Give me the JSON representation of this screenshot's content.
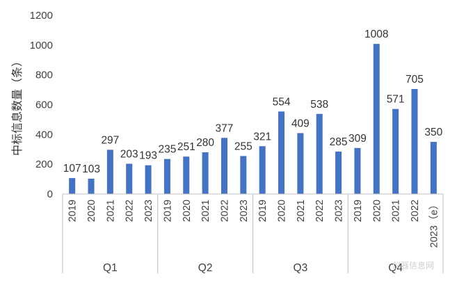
{
  "chart_data": {
    "type": "bar",
    "ylabel": "中标信息数量（条）",
    "ylim": [
      0,
      1200
    ],
    "yticks": [
      0,
      200,
      400,
      600,
      800,
      1000,
      1200
    ],
    "grid": false,
    "color": "#4472C4",
    "groups": [
      {
        "name": "Q1",
        "categories": [
          "2019",
          "2020",
          "2021",
          "2022",
          "2023"
        ],
        "values": [
          107,
          103,
          297,
          203,
          193
        ]
      },
      {
        "name": "Q2",
        "categories": [
          "2019",
          "2020",
          "2021",
          "2022",
          "2023"
        ],
        "values": [
          235,
          251,
          280,
          377,
          255
        ]
      },
      {
        "name": "Q3",
        "categories": [
          "2019",
          "2020",
          "2021",
          "2022",
          "2023"
        ],
        "values": [
          321,
          554,
          409,
          538,
          285
        ]
      },
      {
        "name": "Q4",
        "categories": [
          "2019",
          "2020",
          "2021",
          "2022",
          "2023（e）"
        ],
        "values": [
          309,
          1008,
          571,
          705,
          350
        ]
      }
    ]
  },
  "watermark": "仪器信息网"
}
